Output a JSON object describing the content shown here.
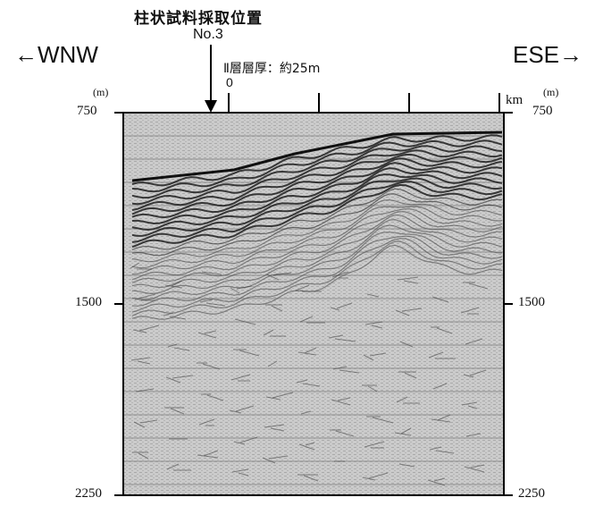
{
  "site": {
    "title": "柱状試料採取位置",
    "number": "No.3"
  },
  "directions": {
    "left": "←WNW",
    "right": "ESE→"
  },
  "layer_note": "Ⅱ層層厚：約25m",
  "distance_axis": {
    "zero_label": "0",
    "unit": "km",
    "tick_count": 4
  },
  "depth_axis": {
    "unit": "(m)",
    "ticks": [
      "750",
      "1500",
      "2250"
    ],
    "values": [
      750,
      1500,
      2250
    ]
  },
  "colors": {
    "background": "#ffffff",
    "panel_fill": "#cfcfcf",
    "reflector_dark": "#1a1a1a",
    "axis": "#000000"
  }
}
